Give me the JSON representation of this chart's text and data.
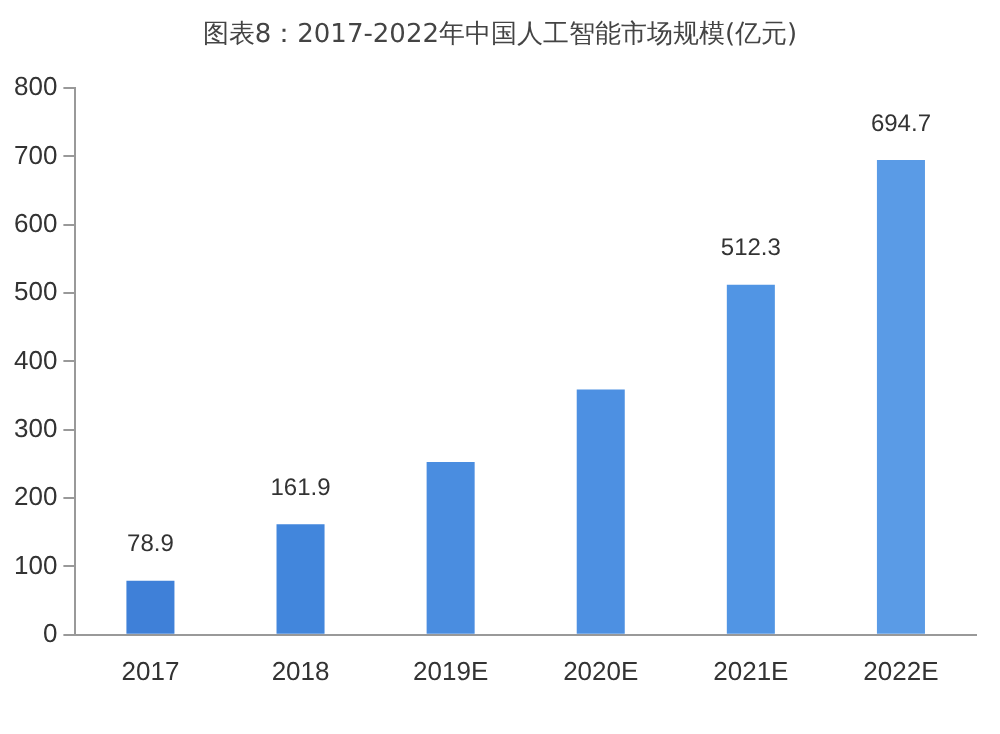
{
  "chart_data": {
    "type": "bar",
    "title": "图表8：2017-2022年中国人工智能市场规模(亿元)",
    "categories": [
      "2017",
      "2018",
      "2019E",
      "2020E",
      "2021E",
      "2022E"
    ],
    "values": [
      78.9,
      161.9,
      253,
      359,
      512.3,
      694.7
    ],
    "value_labels": [
      "78.9",
      "161.9",
      null,
      null,
      "512.3",
      "694.7"
    ],
    "colors": [
      "#3f80d8",
      "#4286dc",
      "#4a8de0",
      "#4d90e2",
      "#5195e4",
      "#5a9be6"
    ],
    "ylim": [
      0,
      800
    ],
    "yticks": [
      0,
      100,
      200,
      300,
      400,
      500,
      600,
      700,
      800
    ],
    "grid": false,
    "legend": false
  }
}
